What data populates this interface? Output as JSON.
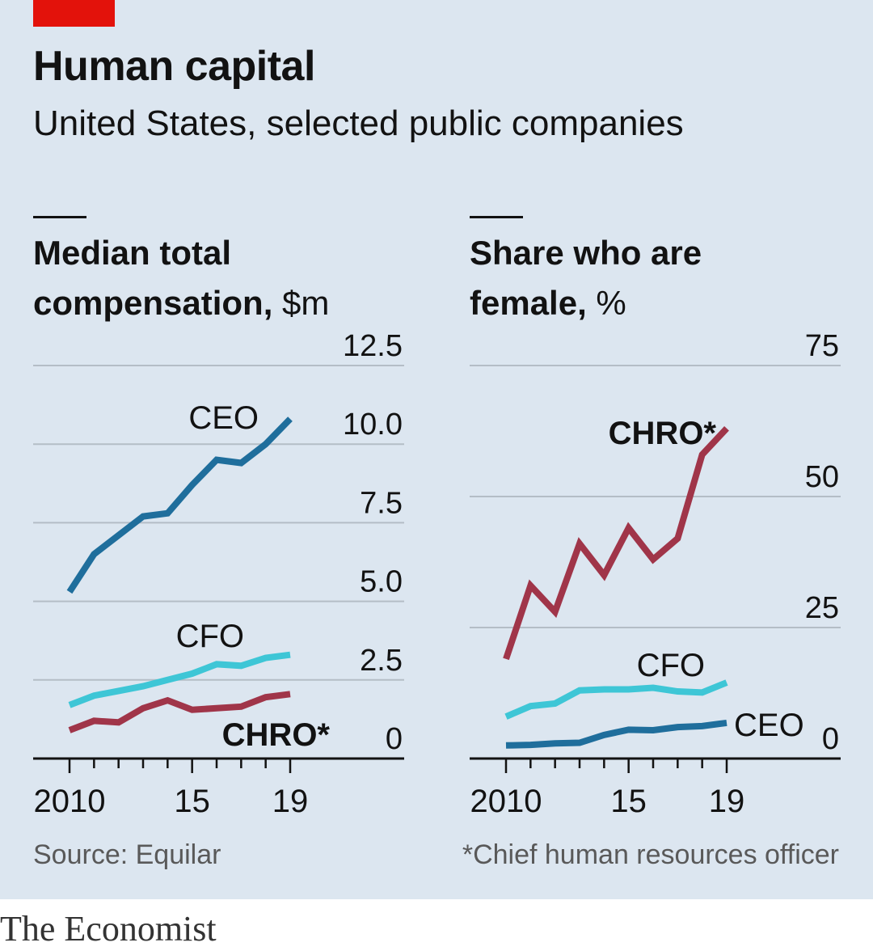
{
  "header": {
    "title": "Human capital",
    "subtitle": "United States, selected public companies"
  },
  "panels": [
    {
      "title_bold_1": "Median total",
      "title_bold_2": "compensation,",
      "unit": " $m"
    },
    {
      "title_bold_1": "Share who are",
      "title_bold_2": "female,",
      "unit": " %"
    }
  ],
  "footer": {
    "source": "Source: Equilar",
    "footnote": "*Chief human resources officer",
    "brand": "The Economist"
  },
  "colors": {
    "background": "#dce6f0",
    "accent": "#e3120b",
    "ceo": "#1f6e9c",
    "cfo": "#3ec6d6",
    "chro": "#a03549",
    "grid": "#b4bdc6"
  },
  "chart_data": [
    {
      "type": "line",
      "title": "Median total compensation, $m",
      "x": [
        2010,
        2011,
        2012,
        2013,
        2014,
        2015,
        2016,
        2017,
        2018,
        2019
      ],
      "xticks": [
        2010,
        2011,
        2012,
        2013,
        2014,
        2015,
        2016,
        2017,
        2018,
        2019
      ],
      "xtick_labels": [
        {
          "value": 2010,
          "label": "2010"
        },
        {
          "value": 2015,
          "label": "15"
        },
        {
          "value": 2019,
          "label": "19"
        }
      ],
      "ylim": [
        0,
        12.5
      ],
      "yticks": [
        0,
        2.5,
        5.0,
        7.5,
        10.0,
        12.5
      ],
      "ytick_labels": [
        "0",
        "2.5",
        "5.0",
        "7.5",
        "10.0",
        "12.5"
      ],
      "grid": true,
      "series": [
        {
          "name": "CEO",
          "color_key": "ceo",
          "label_bold": false,
          "values": [
            5.3,
            6.5,
            7.1,
            7.7,
            7.8,
            8.7,
            9.5,
            9.4,
            10.0,
            10.8
          ]
        },
        {
          "name": "CFO",
          "color_key": "cfo",
          "label_bold": false,
          "values": [
            1.7,
            2.0,
            2.15,
            2.3,
            2.5,
            2.7,
            3.0,
            2.95,
            3.2,
            3.3
          ]
        },
        {
          "name": "CHRO*",
          "color_key": "chro",
          "label_bold": true,
          "values": [
            0.9,
            1.2,
            1.15,
            1.6,
            1.85,
            1.55,
            1.6,
            1.65,
            1.95,
            2.05
          ]
        }
      ]
    },
    {
      "type": "line",
      "title": "Share who are female, %",
      "x": [
        2010,
        2011,
        2012,
        2013,
        2014,
        2015,
        2016,
        2017,
        2018,
        2019
      ],
      "xticks": [
        2010,
        2011,
        2012,
        2013,
        2014,
        2015,
        2016,
        2017,
        2018,
        2019
      ],
      "xtick_labels": [
        {
          "value": 2010,
          "label": "2010"
        },
        {
          "value": 2015,
          "label": "15"
        },
        {
          "value": 2019,
          "label": "19"
        }
      ],
      "ylim": [
        0,
        75
      ],
      "yticks": [
        0,
        25,
        50,
        75
      ],
      "ytick_labels": [
        "0",
        "25",
        "50",
        "75"
      ],
      "grid": true,
      "series": [
        {
          "name": "CHRO*",
          "color_key": "chro",
          "label_bold": true,
          "values": [
            19,
            33,
            28,
            41,
            35,
            44,
            38,
            42,
            58,
            63
          ]
        },
        {
          "name": "CFO",
          "color_key": "cfo",
          "label_bold": false,
          "values": [
            8,
            10,
            10.5,
            13,
            13.2,
            13.2,
            13.5,
            12.8,
            12.6,
            14.5
          ]
        },
        {
          "name": "CEO",
          "color_key": "ceo",
          "label_bold": false,
          "values": [
            2.5,
            2.6,
            2.9,
            3.0,
            4.5,
            5.5,
            5.4,
            6.0,
            6.2,
            6.8
          ]
        }
      ]
    }
  ]
}
